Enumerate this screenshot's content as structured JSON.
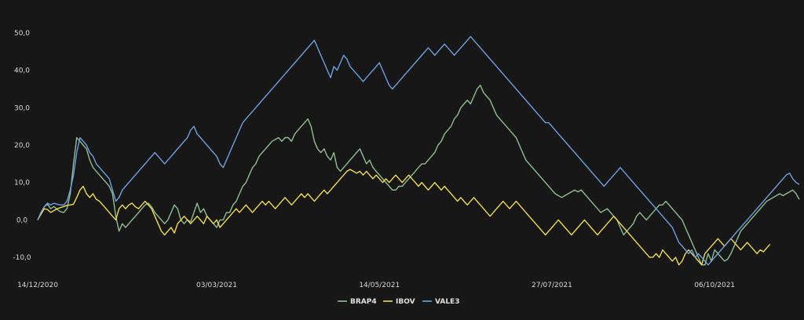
{
  "chart_data": {
    "type": "line",
    "title": "",
    "xlabel": "",
    "ylabel": "",
    "ylim": [
      -15,
      55
    ],
    "y_ticks": [
      -10,
      0,
      10,
      20,
      30,
      40,
      50
    ],
    "y_tick_labels": [
      "-10,0",
      "0,0",
      "10,0",
      "20,0",
      "30,0",
      "40,0",
      "50,0"
    ],
    "x_tick_labels": [
      "14/12/2020",
      "03/03/2021",
      "14/05/2021",
      "27/07/2021",
      "06/10/2021"
    ],
    "x_tick_index": [
      0,
      55,
      105,
      158,
      208
    ],
    "grid": false,
    "legend_position": "bottom-center",
    "series": [
      {
        "name": "BRAP4",
        "color": "#8fbf8f",
        "values": [
          0,
          1.8,
          3.5,
          4.2,
          3,
          3.6,
          2.8,
          2.2,
          2,
          3,
          7,
          15,
          22,
          21,
          20,
          19,
          16,
          14,
          13,
          12,
          11,
          10,
          9,
          7,
          1,
          -3,
          -1,
          -2,
          -1,
          0,
          1,
          2,
          3,
          4,
          4.5,
          3.5,
          2,
          1,
          0,
          -1,
          0,
          2,
          4,
          3,
          0,
          -1,
          0,
          -0.5,
          2,
          4.5,
          2,
          3,
          1,
          0,
          -1,
          -2,
          0,
          0,
          2,
          2,
          4,
          5,
          7,
          9,
          10,
          12,
          14,
          15,
          17,
          18,
          19,
          20,
          21,
          21.5,
          22,
          21,
          22,
          22,
          21,
          23,
          24,
          25,
          26,
          27,
          25,
          21,
          19,
          18,
          19,
          17,
          16,
          18,
          14,
          13,
          14,
          15,
          16,
          17,
          18,
          19,
          17,
          15,
          16,
          14,
          13,
          12,
          11,
          10,
          9,
          8,
          8,
          9,
          9,
          10,
          11,
          12,
          13,
          14,
          15,
          15,
          16,
          17,
          18,
          20,
          21,
          23,
          24,
          25,
          27,
          28,
          30,
          31,
          32,
          31,
          33,
          35,
          36,
          34,
          33,
          32,
          30,
          28,
          27,
          26,
          25,
          24,
          23,
          22,
          20,
          18,
          16,
          15,
          14,
          13,
          12,
          11,
          10,
          9,
          8,
          7,
          6.5,
          6,
          6.5,
          7,
          7.5,
          8,
          7.5,
          8,
          7,
          6,
          5,
          4,
          3,
          2,
          2.5,
          3,
          2,
          1,
          0,
          -2,
          -4,
          -3,
          -2,
          -1,
          1,
          2,
          1,
          0,
          1,
          2,
          3,
          4,
          4,
          5,
          4,
          3,
          2,
          1,
          0,
          -2,
          -4,
          -6,
          -8,
          -10,
          -12,
          -12,
          -9,
          -11,
          -8,
          -9,
          -10,
          -11,
          -10.5,
          -9,
          -7,
          -5,
          -3,
          -2,
          -1,
          0,
          1,
          2,
          3,
          4,
          5,
          5.5,
          6,
          6.5,
          7,
          6.5,
          7,
          7.5,
          8,
          7,
          5.5
        ]
      },
      {
        "name": "IBOV",
        "color": "#f0dc4e",
        "values": [
          0,
          1.5,
          3,
          2.8,
          2,
          2.5,
          3,
          3.3,
          3.6,
          3.9,
          4,
          4.2,
          6,
          8,
          9,
          7,
          6,
          7,
          5.5,
          5,
          4,
          3,
          2,
          1,
          0,
          3,
          4,
          3,
          4,
          4.5,
          3.5,
          3,
          4,
          5,
          4,
          3,
          1,
          -1,
          -3,
          -4,
          -3,
          -2,
          -3.5,
          -1,
          0,
          1,
          0,
          -1,
          0,
          1,
          0,
          -1,
          1,
          0,
          -1,
          0,
          -2,
          -1,
          0,
          1,
          2,
          3,
          2,
          3,
          4,
          3,
          2,
          3,
          4,
          5,
          4,
          5,
          4,
          3,
          4,
          5,
          6,
          5,
          4,
          5,
          6,
          7,
          6,
          7,
          6,
          5,
          6,
          7,
          8,
          7,
          8,
          9,
          10,
          11,
          12,
          13,
          13.5,
          13,
          12.5,
          13,
          12,
          13,
          12,
          11,
          12,
          11,
          10,
          11,
          10,
          11,
          12,
          11,
          10,
          11,
          12,
          11,
          10,
          9,
          10,
          9,
          8,
          9,
          10,
          9,
          8,
          9,
          8,
          7,
          6,
          5,
          6,
          5,
          4,
          5,
          6,
          5,
          4,
          3,
          2,
          1,
          2,
          3,
          4,
          5,
          4,
          3,
          4,
          5,
          4,
          3,
          2,
          1,
          0,
          -1,
          -2,
          -3,
          -4,
          -3,
          -2,
          -1,
          0,
          -1,
          -2,
          -3,
          -4,
          -3,
          -2,
          -1,
          0,
          -1,
          -2,
          -3,
          -4,
          -3,
          -2,
          -1,
          0,
          1,
          0,
          -1,
          -2,
          -3,
          -4,
          -5,
          -6,
          -7,
          -8,
          -9,
          -10,
          -10,
          -9,
          -10,
          -8,
          -9,
          -10,
          -11,
          -10,
          -12,
          -11,
          -9,
          -8,
          -9,
          -10,
          -11,
          -12,
          -9,
          -8,
          -7,
          -6,
          -5,
          -6,
          -7,
          -6,
          -5,
          -6,
          -7,
          -8,
          -7,
          -6,
          -7,
          -8,
          -9,
          -8,
          -8.5,
          -7.5,
          -6.5
        ]
      },
      {
        "name": "VALE3",
        "color": "#6fa0e0",
        "values": [
          0,
          2,
          3.5,
          4.5,
          4,
          4.5,
          4.2,
          4,
          4,
          5,
          8,
          12,
          18,
          22,
          21,
          20,
          18,
          17,
          15,
          14,
          13,
          12,
          11,
          8,
          5,
          6,
          8,
          9,
          10,
          11,
          12,
          13,
          14,
          15,
          16,
          17,
          18,
          17,
          16,
          15,
          16,
          17,
          18,
          19,
          20,
          21,
          22,
          24,
          25,
          23,
          22,
          21,
          20,
          19,
          18,
          17,
          15,
          14,
          16,
          18,
          20,
          22,
          24,
          26,
          27,
          28,
          29,
          30,
          31,
          32,
          33,
          34,
          35,
          36,
          37,
          38,
          39,
          40,
          41,
          42,
          43,
          44,
          45,
          46,
          47,
          48,
          46,
          44,
          42,
          40,
          38,
          41,
          40,
          42,
          44,
          43,
          41,
          40,
          39,
          38,
          37,
          38,
          39,
          40,
          41,
          42,
          40,
          38,
          36,
          35,
          36,
          37,
          38,
          39,
          40,
          41,
          42,
          43,
          44,
          45,
          46,
          45,
          44,
          45,
          46,
          47,
          46,
          45,
          44,
          45,
          46,
          47,
          48,
          49,
          48,
          47,
          46,
          45,
          44,
          43,
          42,
          41,
          40,
          39,
          38,
          37,
          36,
          35,
          34,
          33,
          32,
          31,
          30,
          29,
          28,
          27,
          26,
          26,
          25,
          24,
          23,
          22,
          21,
          20,
          19,
          18,
          17,
          16,
          15,
          14,
          13,
          12,
          11,
          10,
          9,
          10,
          11,
          12,
          13,
          14,
          13,
          12,
          11,
          10,
          9,
          8,
          7,
          6,
          5,
          4,
          3,
          2,
          1,
          0,
          -1,
          -2,
          -4,
          -6,
          -7,
          -8,
          -9,
          -8,
          -10,
          -9,
          -10,
          -11,
          -12,
          -11,
          -10,
          -9,
          -8,
          -7,
          -6,
          -5,
          -4,
          -3,
          -2,
          -1,
          0,
          1,
          2,
          3,
          4,
          5,
          6,
          7,
          8,
          9,
          10,
          11,
          12,
          12.5,
          11,
          10,
          9.5
        ]
      }
    ]
  }
}
